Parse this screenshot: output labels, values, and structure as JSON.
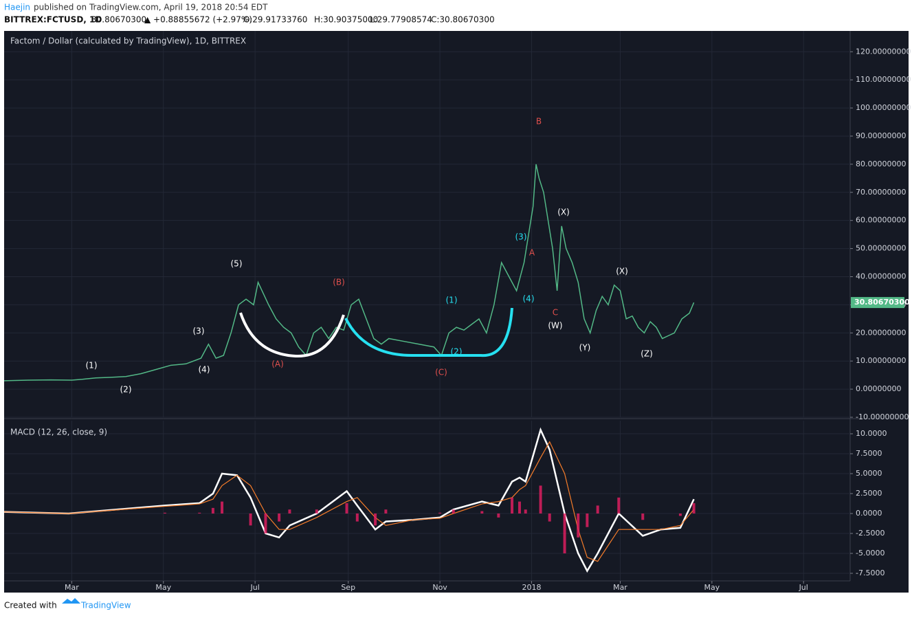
{
  "header": {
    "author": "Haejin",
    "published": "published on TradingView.com, April 19, 2018 20:54 EDT",
    "symbol": "BITTREX:FCTUSD, 1D",
    "price": "30.80670300",
    "change": "▲ +0.88855672 (+2.97%)",
    "open": "O:29.91733760",
    "high": "H:30.90375000",
    "low": "L:29.77908574",
    "close": "C:30.80670300"
  },
  "chart_data": [
    {
      "type": "line",
      "title": "Factom / Dollar (calculated by TradingView), 1D, BITTREX",
      "x": [
        14,
        30,
        45,
        59,
        66,
        75,
        85,
        95,
        105,
        115,
        125,
        135,
        145,
        150,
        155,
        160,
        165,
        170,
        175,
        180,
        183,
        190,
        195,
        200,
        205,
        210,
        215,
        220,
        225,
        230,
        235,
        240,
        245,
        250,
        255,
        260,
        265,
        270,
        280,
        290,
        300,
        305,
        310,
        315,
        320,
        325,
        330,
        335,
        340,
        345,
        350,
        355,
        360,
        363,
        366,
        368,
        370,
        373,
        376,
        379,
        382,
        385,
        388,
        392,
        396,
        400,
        404,
        408,
        412,
        416,
        420,
        424,
        428,
        432,
        436,
        440,
        444,
        448,
        452,
        456,
        460,
        465,
        470,
        473
      ],
      "series": [
        {
          "color": "#53b987",
          "values": [
            3,
            3.2,
            3.3,
            3.2,
            3.5,
            4,
            4.2,
            4.5,
            5.5,
            7,
            8.5,
            9,
            11,
            16,
            11,
            12,
            20,
            30,
            32,
            30,
            38,
            30,
            25,
            22,
            20,
            15,
            12,
            20,
            22,
            18,
            22,
            21,
            30,
            32,
            25,
            18,
            16,
            18,
            17,
            16,
            15,
            12,
            20,
            22,
            21,
            23,
            25,
            20,
            30,
            45,
            40,
            35,
            45,
            55,
            65,
            80,
            75,
            70,
            60,
            50,
            35,
            58,
            50,
            45,
            38,
            25,
            20,
            28,
            33,
            30,
            37,
            35,
            25,
            26,
            22,
            20,
            24,
            22,
            18,
            19,
            20,
            25,
            27,
            30.8067
          ]
        }
      ],
      "xlim": [
        14,
        577
      ],
      "ylim": [
        -10,
        127.4
      ],
      "yticks": [
        {
          "value": -10,
          "label": "-10.00000000"
        },
        {
          "value": 0,
          "label": "0.00000000"
        },
        {
          "value": 10,
          "label": "10.00000000"
        },
        {
          "value": 20,
          "label": "20.00000000"
        },
        {
          "value": 30,
          "label": "30.00000000"
        },
        {
          "value": 40,
          "label": "40.00000000"
        },
        {
          "value": 50,
          "label": "50.00000000"
        },
        {
          "value": 60,
          "label": "60.00000000"
        },
        {
          "value": 70,
          "label": "70.00000000"
        },
        {
          "value": 80,
          "label": "80.00000000"
        },
        {
          "value": 90,
          "label": "90.00000000"
        },
        {
          "value": 100,
          "label": "100.00000000"
        },
        {
          "value": 110,
          "label": "110.00000000"
        },
        {
          "value": 120,
          "label": "120.00000000"
        }
      ],
      "last_price": {
        "value": 30.8067,
        "label": "30.80670300"
      },
      "annotations": [
        "(1)",
        "(2)",
        "(3)",
        "(4)",
        "(5)",
        "(A)",
        "(B)",
        "(C)",
        "(1)",
        "(2)",
        "(3)",
        "(4)",
        "A",
        "B",
        "C",
        "(W)",
        "(X)",
        "(Y)",
        "(X)",
        "(Z)"
      ],
      "grid": true
    },
    {
      "type": "line",
      "title": "MACD (12, 26, close, 9)",
      "x": [
        14,
        57,
        121,
        144,
        153,
        159,
        169,
        178,
        188,
        197,
        204,
        222,
        242,
        249,
        261,
        268,
        286,
        304,
        313,
        332,
        343,
        352,
        357,
        361,
        371,
        377,
        387,
        396,
        402,
        409,
        423,
        439,
        451,
        464,
        473
      ],
      "series": [
        {
          "color": "#ffffff",
          "width": 2.5,
          "style": "line",
          "values": [
            0.2,
            0,
            1.0,
            1.3,
            2.5,
            5,
            4.8,
            2,
            -2.5,
            -3,
            -1.5,
            0,
            2.8,
            1,
            -2,
            -1,
            -0.8,
            -0.5,
            0.5,
            1.5,
            1,
            4,
            4.5,
            4,
            10.5,
            8,
            0,
            -5,
            -7.2,
            -5,
            0,
            -2.8,
            -2,
            -1.8,
            1.8
          ]
        },
        {
          "color": "#f57c2a",
          "width": 1.2,
          "style": "line",
          "values": [
            0.2,
            0,
            0.9,
            1.2,
            1.8,
            3.5,
            4.8,
            3.5,
            0,
            -2,
            -2,
            -0.5,
            1.5,
            2,
            -0.5,
            -1.5,
            -0.8,
            -0.6,
            0,
            1.2,
            1.5,
            2,
            3,
            3.5,
            7,
            9,
            5,
            -2,
            -5.5,
            -6,
            -2,
            -2,
            -2,
            -1.5,
            0.5
          ]
        },
        {
          "color": "#e91e63",
          "style": "bar",
          "values": [
            0,
            0,
            0.1,
            0.1,
            0.7,
            1.5,
            0,
            -1.5,
            -2.5,
            -1,
            0.5,
            0.5,
            1.3,
            -1,
            -1.5,
            0.5,
            0,
            0.1,
            0.5,
            0.3,
            -0.5,
            2,
            1.5,
            0.5,
            3.5,
            -1,
            -5,
            -3,
            -1.7,
            1,
            2,
            -0.8,
            0,
            -0.3,
            1.3
          ]
        }
      ],
      "xlim": [
        14,
        577
      ],
      "ylim": [
        -8.45,
        11.64
      ],
      "yticks": [
        {
          "value": -7.5,
          "label": "-7.5000"
        },
        {
          "value": -5,
          "label": "-5.0000"
        },
        {
          "value": -2.5,
          "label": "-2.5000"
        },
        {
          "value": 0,
          "label": "0.0000"
        },
        {
          "value": 2.5,
          "label": "2.5000"
        },
        {
          "value": 5,
          "label": "5.0000"
        },
        {
          "value": 7.5,
          "label": "7.5000"
        },
        {
          "value": 10,
          "label": "10.0000"
        }
      ],
      "xticks": [
        {
          "value": 59,
          "label": "Mar"
        },
        {
          "value": 120,
          "label": "May"
        },
        {
          "value": 181,
          "label": "Jul"
        },
        {
          "value": 243,
          "label": "Sep"
        },
        {
          "value": 304,
          "label": "Nov"
        },
        {
          "value": 365,
          "label": "2018"
        },
        {
          "value": 424,
          "label": "Mar"
        },
        {
          "value": 485,
          "label": "May"
        },
        {
          "value": 546,
          "label": "Jul"
        }
      ],
      "grid": true
    }
  ],
  "footer": {
    "created": "Created with",
    "brand": "TradingView"
  }
}
